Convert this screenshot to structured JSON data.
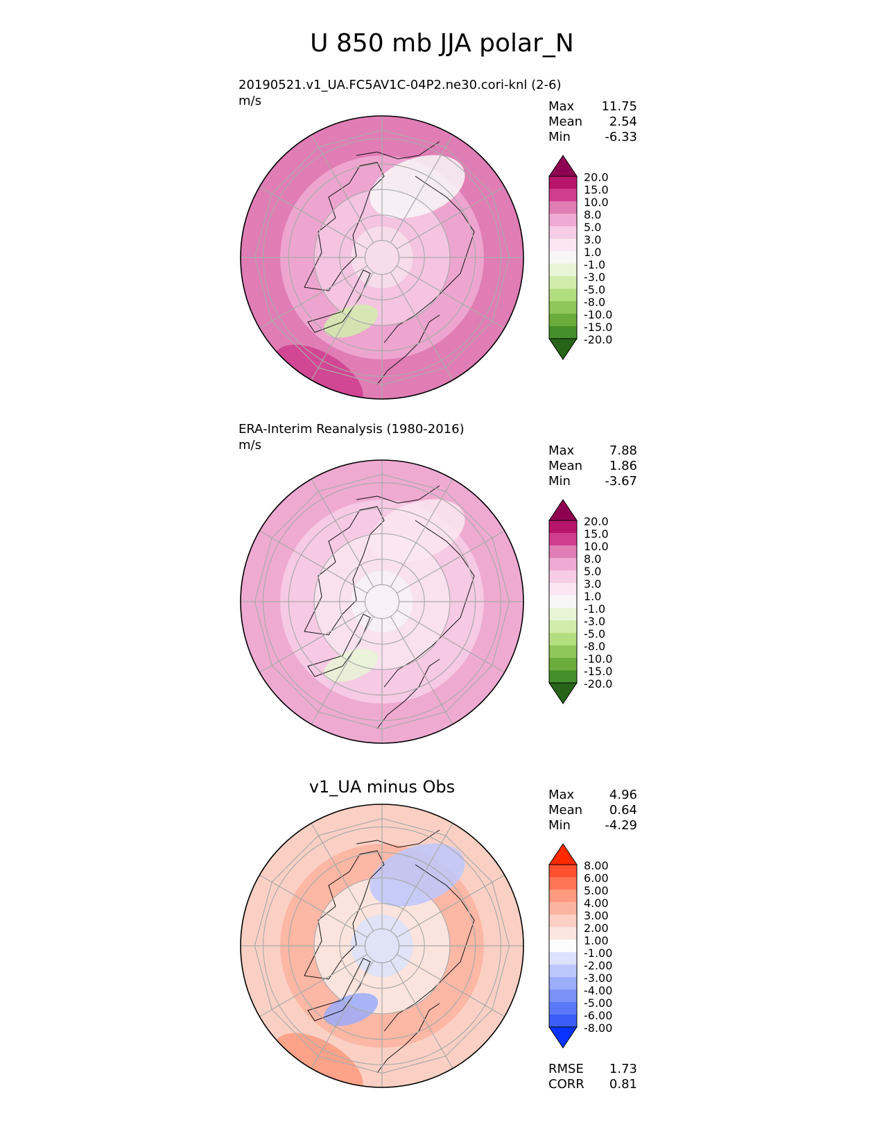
{
  "title": "U 850 mb JJA polar_N",
  "panels": [
    {
      "id": "test",
      "heading": "20190521.v1_UA.FC5AV1C-04P2.ne30.cori-knl (2-6)",
      "units": "m/s",
      "stats": [
        {
          "label": "Max",
          "value": "11.75"
        },
        {
          "label": "Mean",
          "value": "2.54"
        },
        {
          "label": "Min",
          "value": "-6.33"
        }
      ],
      "colorbar": {
        "labels": [
          "20.0",
          "15.0",
          "10.0",
          "8.0",
          "5.0",
          "3.0",
          "1.0",
          "-1.0",
          "-3.0",
          "-5.0",
          "-8.0",
          "-10.0",
          "-15.0",
          "-20.0"
        ],
        "colors": [
          "#8e0152",
          "#b8146c",
          "#cf3d8e",
          "#e07db5",
          "#eeaad2",
          "#f6cce6",
          "#fae7f1",
          "#f7f7f7",
          "#e8f5d6",
          "#d1ecab",
          "#b3de7f",
          "#8fc75a",
          "#6aad3a",
          "#44902a",
          "#276419"
        ]
      },
      "fields": [
        {
          "v": 10.0
        },
        {
          "v": 6.0
        },
        {
          "v": 4.0
        },
        {
          "v": 1.5
        },
        {
          "v": 12.0
        },
        {
          "v": 0.5
        },
        {
          "v": -3.0
        }
      ]
    },
    {
      "id": "reference",
      "heading": "ERA-Interim Reanalysis (1980-2016)",
      "units": "m/s",
      "stats": [
        {
          "label": "Max",
          "value": "7.88"
        },
        {
          "label": "Mean",
          "value": "1.86"
        },
        {
          "label": "Min",
          "value": "-3.67"
        }
      ],
      "colorbar": {
        "labels": [
          "20.0",
          "15.0",
          "10.0",
          "8.0",
          "5.0",
          "3.0",
          "1.0",
          "-1.0",
          "-3.0",
          "-5.0",
          "-8.0",
          "-10.0",
          "-15.0",
          "-20.0"
        ],
        "colors": [
          "#8e0152",
          "#b8146c",
          "#cf3d8e",
          "#e07db5",
          "#eeaad2",
          "#f6cce6",
          "#fae7f1",
          "#f7f7f7",
          "#e8f5d6",
          "#d1ecab",
          "#b3de7f",
          "#8fc75a",
          "#6aad3a",
          "#44902a",
          "#276419"
        ]
      },
      "fields": [
        {
          "v": 6.0
        },
        {
          "v": 4.0
        },
        {
          "v": 2.0
        },
        {
          "v": 0.0
        },
        {
          "v": 7.0
        },
        {
          "v": 3.0
        },
        {
          "v": -2.0
        }
      ]
    },
    {
      "id": "diff",
      "heading": "v1_UA minus Obs",
      "units": "",
      "stats": [
        {
          "label": "Max",
          "value": "4.96"
        },
        {
          "label": "Mean",
          "value": "0.64"
        },
        {
          "label": "Min",
          "value": "-4.29"
        }
      ],
      "extra_stats": [
        {
          "label": "RMSE",
          "value": "1.73"
        },
        {
          "label": "CORR",
          "value": "0.81"
        }
      ],
      "colorbar": {
        "labels": [
          "8.00",
          "6.00",
          "5.00",
          "4.00",
          "3.00",
          "2.00",
          "1.00",
          "-1.00",
          "-2.00",
          "-3.00",
          "-4.00",
          "-5.00",
          "-6.00",
          "-8.00"
        ],
        "colors": [
          "#ff2a00",
          "#ff5030",
          "#ff7656",
          "#fd9b80",
          "#fcb4a2",
          "#fbcfc4",
          "#fbe6e0",
          "#fcfcfc",
          "#dde3fc",
          "#bcc8fb",
          "#9aacfa",
          "#7a91f8",
          "#5b78f7",
          "#3a5ef7",
          "#0a33ff"
        ]
      },
      "fields": [
        {
          "v": 2.5
        },
        {
          "v": 3.5
        },
        {
          "v": 1.5
        },
        {
          "v": -1.5
        },
        {
          "v": 4.5
        },
        {
          "v": -2.5
        },
        {
          "v": -3.5
        }
      ]
    }
  ],
  "chart_data": [
    {
      "type": "heatmap",
      "title": "20190521.v1_UA.FC5AV1C-04P2.ne30.cori-knl (2-6)",
      "projection": "polar stereographic (north pole)",
      "units": "m/s",
      "stats": {
        "max": 11.75,
        "mean": 2.54,
        "min": -6.33
      },
      "levels": [
        -20,
        -15,
        -10,
        -8,
        -5,
        -3,
        -1,
        1,
        3,
        5,
        8,
        10,
        15,
        20
      ]
    },
    {
      "type": "heatmap",
      "title": "ERA-Interim Reanalysis (1980-2016)",
      "projection": "polar stereographic (north pole)",
      "units": "m/s",
      "stats": {
        "max": 7.88,
        "mean": 1.86,
        "min": -3.67
      },
      "levels": [
        -20,
        -15,
        -10,
        -8,
        -5,
        -3,
        -1,
        1,
        3,
        5,
        8,
        10,
        15,
        20
      ]
    },
    {
      "type": "heatmap",
      "title": "v1_UA minus Obs",
      "projection": "polar stereographic (north pole)",
      "stats": {
        "max": 4.96,
        "mean": 0.64,
        "min": -4.29,
        "rmse": 1.73,
        "corr": 0.81
      },
      "levels": [
        -8,
        -6,
        -5,
        -4,
        -3,
        -2,
        -1,
        1,
        2,
        3,
        4,
        5,
        6,
        8
      ]
    }
  ]
}
